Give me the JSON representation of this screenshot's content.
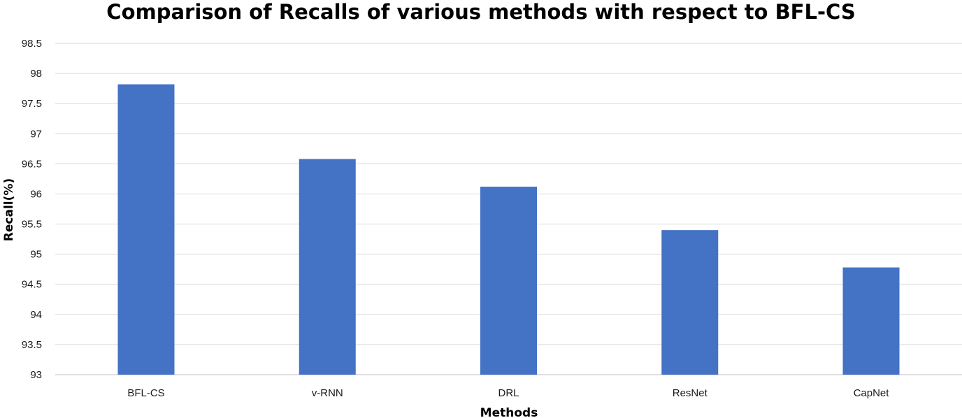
{
  "chart_data": {
    "type": "bar",
    "title": "Comparison of Recalls of various methods with respect to BFL-CS",
    "xlabel": "Methods",
    "ylabel": "Recall(%)",
    "categories": [
      "BFL-CS",
      "v-RNN",
      "DRL",
      "ResNet",
      "CapNet"
    ],
    "values": [
      97.82,
      96.58,
      96.12,
      95.4,
      94.78
    ],
    "ylim": [
      93,
      98.5
    ],
    "yticks": [
      "93",
      "93.5",
      "94",
      "94.5",
      "95",
      "95.5",
      "96",
      "96.5",
      "97",
      "97.5",
      "98",
      "98.5"
    ],
    "grid": true,
    "legend": "none",
    "bar_color": "#4472c4"
  }
}
